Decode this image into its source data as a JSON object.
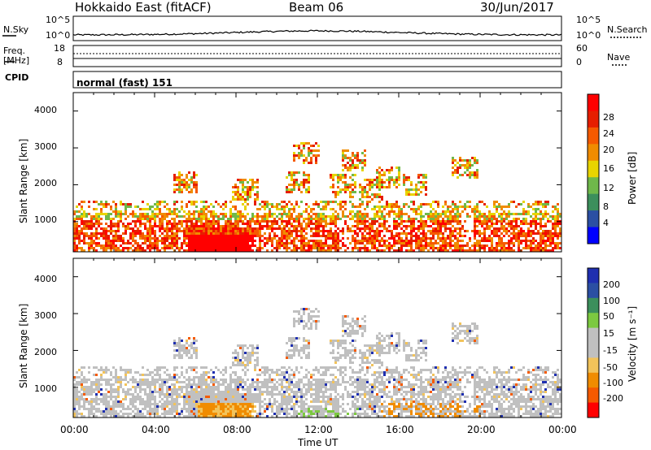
{
  "header": {
    "radar": "Hokkaido East (fitACF)",
    "beam": "Beam 06",
    "date": "30/Jun/2017"
  },
  "noise_panel": {
    "left_label": "N.Sky",
    "left_ticks": [
      "10^5",
      "10^0"
    ],
    "right_label": "N.Search",
    "right_ticks": [
      "10^5",
      "10^0"
    ]
  },
  "freq_panel": {
    "left_label": "Freq.",
    "left_unit": "[MHz]",
    "left_ticks": [
      "18",
      "8"
    ],
    "right_label": "Nave",
    "right_ticks": [
      "60",
      "0"
    ]
  },
  "cpid": {
    "label": "CPID",
    "value": "normal (fast) 151"
  },
  "colors": {
    "power": [
      "#0000ff",
      "#2b4fa3",
      "#3c8f5c",
      "#6fb84a",
      "#e8d400",
      "#f08c00",
      "#f55a00",
      "#e61e00",
      "#ff0000"
    ],
    "velocity": [
      "#ff0000",
      "#f55a00",
      "#f08c00",
      "#f2c35a",
      "#c0c0c0",
      "#c0c0c0",
      "#7cc940",
      "#3c8f5c",
      "#2b4fa3",
      "#1f2fb0"
    ]
  },
  "chart_data": [
    {
      "type": "heatmap",
      "name": "power",
      "ylabel": "Slant Range [km]",
      "xlabel": "",
      "y_ticks": [
        "1000",
        "2000",
        "3000",
        "4000"
      ],
      "x_range": [
        0,
        24
      ],
      "y_range": [
        180,
        4500
      ],
      "colorbar_label": "Power [dB]",
      "colorbar_ticks": [
        "4",
        "8",
        "12",
        "16",
        "20",
        "24",
        "28"
      ],
      "colorbar_range": [
        0,
        30
      ]
    },
    {
      "type": "heatmap",
      "name": "velocity",
      "ylabel": "Slant Range [km]",
      "xlabel": "Time UT",
      "x_ticks": [
        "00:00",
        "04:00",
        "08:00",
        "12:00",
        "16:00",
        "20:00",
        "00:00"
      ],
      "y_ticks": [
        "1000",
        "2000",
        "3000",
        "4000"
      ],
      "x_range": [
        0,
        24
      ],
      "y_range": [
        180,
        4500
      ],
      "colorbar_label": "Velocity [m s⁻¹]",
      "colorbar_ticks": [
        "200",
        "100",
        "50",
        "15",
        "-15",
        "-50",
        "-100",
        "-200"
      ]
    }
  ]
}
